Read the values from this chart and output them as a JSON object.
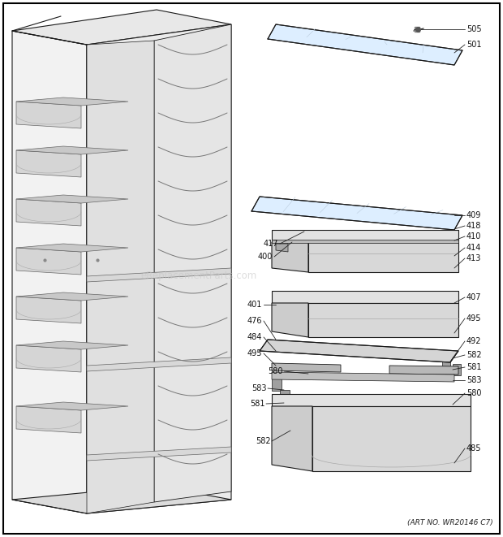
{
  "bg_color": "#ffffff",
  "line_color": "#1a1a1a",
  "art_no_text": "(ART NO. WR20146 C7)",
  "watermark": "eReplacementParts.com",
  "label_fontsize": 7.0,
  "lw": 0.8
}
